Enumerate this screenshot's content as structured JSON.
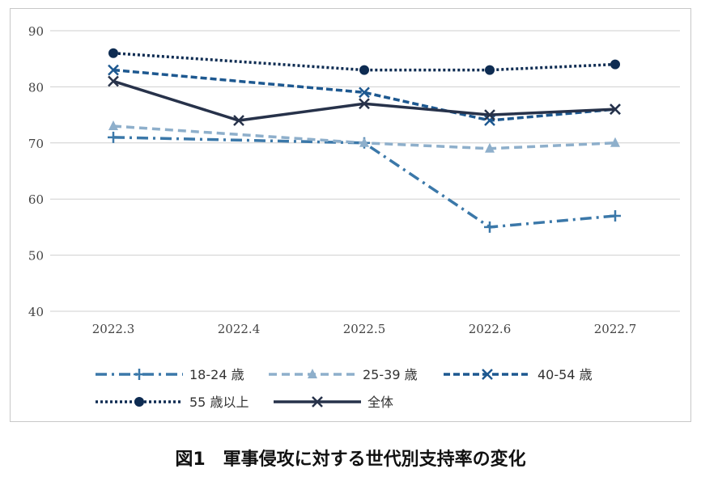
{
  "chart_data": {
    "type": "line",
    "title": "図1　軍事侵攻に対する世代別支持率の変化",
    "categories": [
      "2022.3",
      "2022.4",
      "2022.5",
      "2022.6",
      "2022.7"
    ],
    "ylim": [
      40,
      90
    ],
    "yticks": [
      40,
      50,
      60,
      70,
      80,
      90
    ],
    "grid": true,
    "legend": "bottom",
    "series": [
      {
        "name": "18-24 歳",
        "values": [
          71,
          null,
          70,
          55,
          57
        ],
        "color": "#3b78a9",
        "dash": "14 6 3 6",
        "marker": "plus"
      },
      {
        "name": "25-39 歳",
        "values": [
          73,
          null,
          70,
          69,
          70
        ],
        "color": "#8eafcb",
        "dash": "10 6",
        "marker": "triangle"
      },
      {
        "name": "40-54 歳",
        "values": [
          83,
          null,
          79,
          74,
          76
        ],
        "color": "#1d5890",
        "dash": "8 4",
        "marker": "x"
      },
      {
        "name": "55 歳以上",
        "values": [
          86,
          null,
          83,
          83,
          84
        ],
        "color": "#0e2c52",
        "dash": "3 3",
        "marker": "circle"
      },
      {
        "name": "全体",
        "values": [
          81,
          74,
          77,
          75,
          76
        ],
        "color": "#27324a",
        "dash": "",
        "marker": "x"
      }
    ]
  }
}
